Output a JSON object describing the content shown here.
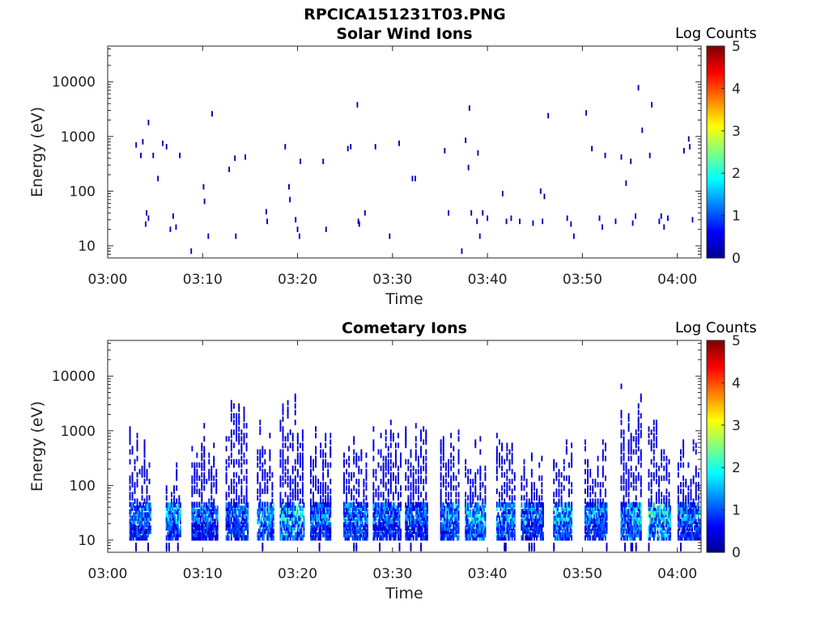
{
  "figure": {
    "title": "RPCICA151231T03.PNG"
  },
  "colormap": [
    "#00008f",
    "#0000ff",
    "#0080ff",
    "#00ffff",
    "#80ff80",
    "#ffff00",
    "#ff8000",
    "#ff0000",
    "#800000"
  ],
  "chart_data": [
    {
      "type": "heatmap",
      "title": "Solar Wind Ions",
      "xlabel": "Time",
      "ylabel": "Energy (eV)",
      "x_ticks": [
        "03:00",
        "03:10",
        "03:20",
        "03:30",
        "03:40",
        "03:50",
        "04:00"
      ],
      "x_range_minutes": [
        0,
        62.5
      ],
      "y_scale": "log",
      "y_range": [
        6,
        45000
      ],
      "y_ticks": [
        "10",
        "100",
        "1000",
        "10000"
      ],
      "colorbar": {
        "label": "Log Counts",
        "range": [
          0,
          5
        ],
        "ticks": [
          "0",
          "1",
          "2",
          "3",
          "4",
          "5"
        ]
      },
      "points": [
        [
          3,
          700,
          0.3
        ],
        [
          3.5,
          450,
          0.3
        ],
        [
          3.7,
          800,
          0.2
        ],
        [
          4.3,
          1800,
          0.3
        ],
        [
          4.0,
          25,
          0.3
        ],
        [
          4.1,
          40,
          0.3
        ],
        [
          4.3,
          32,
          0.3
        ],
        [
          4.8,
          450,
          0.2
        ],
        [
          5.3,
          170,
          0.2
        ],
        [
          5.8,
          750,
          0.2
        ],
        [
          6.2,
          650,
          0.2
        ],
        [
          6.6,
          20,
          0.3
        ],
        [
          6.9,
          35,
          0.3
        ],
        [
          7.2,
          22,
          0.3
        ],
        [
          7.6,
          450,
          0.2
        ],
        [
          8.8,
          8,
          0.4
        ],
        [
          10.1,
          120,
          0.2
        ],
        [
          10.2,
          65,
          0.3
        ],
        [
          10.6,
          15,
          0.3
        ],
        [
          11,
          2600,
          0.2
        ],
        [
          12.8,
          250,
          0.2
        ],
        [
          13.4,
          400,
          0.2
        ],
        [
          13.5,
          15,
          0.3
        ],
        [
          14.5,
          420,
          0.2
        ],
        [
          16.7,
          42,
          0.3
        ],
        [
          16.8,
          28,
          0.3
        ],
        [
          18.7,
          650,
          0.2
        ],
        [
          19.1,
          120,
          0.2
        ],
        [
          19.2,
          70,
          0.2
        ],
        [
          19.8,
          30,
          0.3
        ],
        [
          20,
          20,
          0.3
        ],
        [
          20.2,
          15,
          0.3
        ],
        [
          20.3,
          350,
          0.2
        ],
        [
          22.7,
          350,
          0.2
        ],
        [
          23.0,
          20,
          0.3
        ],
        [
          25.3,
          600,
          0.2
        ],
        [
          25.6,
          650,
          0.2
        ],
        [
          26.3,
          3800,
          0.2
        ],
        [
          26.4,
          28,
          0.3
        ],
        [
          26.5,
          25,
          0.3
        ],
        [
          27.1,
          40,
          0.3
        ],
        [
          28.2,
          650,
          0.2
        ],
        [
          29.7,
          15,
          0.3
        ],
        [
          30.7,
          750,
          0.2
        ],
        [
          32.1,
          170,
          0.3
        ],
        [
          32.4,
          170,
          0.3
        ],
        [
          35.5,
          550,
          0.2
        ],
        [
          35.9,
          40,
          0.3
        ],
        [
          37.3,
          8,
          0.4
        ],
        [
          37.7,
          850,
          0.2
        ],
        [
          38.1,
          3300,
          0.2
        ],
        [
          38.0,
          270,
          0.2
        ],
        [
          38.3,
          40,
          0.3
        ],
        [
          38.9,
          28,
          0.3
        ],
        [
          39.0,
          500,
          0.2
        ],
        [
          39.2,
          15,
          0.3
        ],
        [
          39.5,
          40,
          0.3
        ],
        [
          40,
          32,
          0.3
        ],
        [
          41.6,
          90,
          0.2
        ],
        [
          42,
          28,
          0.3
        ],
        [
          42.5,
          32,
          0.3
        ],
        [
          43.4,
          28,
          0.3
        ],
        [
          44.8,
          26,
          0.3
        ],
        [
          45.6,
          100,
          0.2
        ],
        [
          45.8,
          28,
          0.3
        ],
        [
          46,
          80,
          0.2
        ],
        [
          46.4,
          2400,
          0.2
        ],
        [
          48.4,
          32,
          0.3
        ],
        [
          48.8,
          25,
          0.3
        ],
        [
          49.1,
          15,
          0.3
        ],
        [
          50.4,
          2700,
          0.2
        ],
        [
          51.0,
          600,
          0.2
        ],
        [
          51.8,
          32,
          0.3
        ],
        [
          52.1,
          22,
          0.3
        ],
        [
          52.4,
          450,
          0.2
        ],
        [
          53.5,
          28,
          0.3
        ],
        [
          54.1,
          420,
          0.2
        ],
        [
          54.6,
          140,
          0.2
        ],
        [
          55.1,
          350,
          0.2
        ],
        [
          55.3,
          26,
          0.4
        ],
        [
          55.6,
          35,
          0.3
        ],
        [
          55.9,
          7800,
          0.2
        ],
        [
          56.3,
          1300,
          0.2
        ],
        [
          57.1,
          450,
          0.2
        ],
        [
          57.3,
          3800,
          0.2
        ],
        [
          58.1,
          28,
          0.3
        ],
        [
          58.3,
          35,
          0.3
        ],
        [
          58.6,
          22,
          0.3
        ],
        [
          59.0,
          32,
          0.3
        ],
        [
          60.7,
          550,
          0.2
        ],
        [
          61.2,
          900,
          0.2
        ],
        [
          61.3,
          650,
          0.2
        ],
        [
          61.6,
          30,
          0.3
        ]
      ]
    },
    {
      "type": "heatmap",
      "title": "Cometary Ions",
      "xlabel": "Time",
      "ylabel": "Energy (eV)",
      "x_ticks": [
        "03:00",
        "03:10",
        "03:20",
        "03:30",
        "03:40",
        "03:50",
        "04:00"
      ],
      "x_range_minutes": [
        0,
        62.5
      ],
      "y_scale": "log",
      "y_range": [
        6,
        45000
      ],
      "y_ticks": [
        "10",
        "100",
        "1000",
        "10000"
      ],
      "colorbar": {
        "label": "Log Counts",
        "range": [
          0,
          5
        ],
        "ticks": [
          "0",
          "1",
          "2",
          "3",
          "4",
          "5"
        ]
      },
      "bursts": [
        {
          "t": 3.5,
          "w": 2.3,
          "top": 1700,
          "lvl": 1.1
        },
        {
          "t": 7.0,
          "w": 1.6,
          "top": 420,
          "lvl": 1.2
        },
        {
          "t": 10.3,
          "w": 2.8,
          "top": 1300,
          "lvl": 1.0
        },
        {
          "t": 13.7,
          "w": 2.4,
          "top": 4400,
          "lvl": 1.0
        },
        {
          "t": 16.7,
          "w": 1.8,
          "top": 2100,
          "lvl": 1.2
        },
        {
          "t": 19.5,
          "w": 2.6,
          "top": 4600,
          "lvl": 1.5
        },
        {
          "t": 22.5,
          "w": 2.2,
          "top": 1300,
          "lvl": 1.1
        },
        {
          "t": 26.2,
          "w": 2.6,
          "top": 1700,
          "lvl": 1.1
        },
        {
          "t": 29.5,
          "w": 3.0,
          "top": 1600,
          "lvl": 1.0
        },
        {
          "t": 32.6,
          "w": 2.4,
          "top": 3200,
          "lvl": 0.9
        },
        {
          "t": 36.1,
          "w": 2.0,
          "top": 1200,
          "lvl": 1.2
        },
        {
          "t": 38.8,
          "w": 2.2,
          "top": 800,
          "lvl": 1.4
        },
        {
          "t": 42.0,
          "w": 2.0,
          "top": 1000,
          "lvl": 1.2
        },
        {
          "t": 44.8,
          "w": 2.4,
          "top": 520,
          "lvl": 1.0
        },
        {
          "t": 48.0,
          "w": 2.0,
          "top": 1200,
          "lvl": 1.3
        },
        {
          "t": 51.5,
          "w": 2.4,
          "top": 1000,
          "lvl": 1.1
        },
        {
          "t": 55.2,
          "w": 2.2,
          "top": 7200,
          "lvl": 1.3
        },
        {
          "t": 58.2,
          "w": 2.4,
          "top": 1800,
          "lvl": 1.7
        },
        {
          "t": 61.3,
          "w": 2.4,
          "top": 900,
          "lvl": 1.1
        }
      ]
    }
  ]
}
